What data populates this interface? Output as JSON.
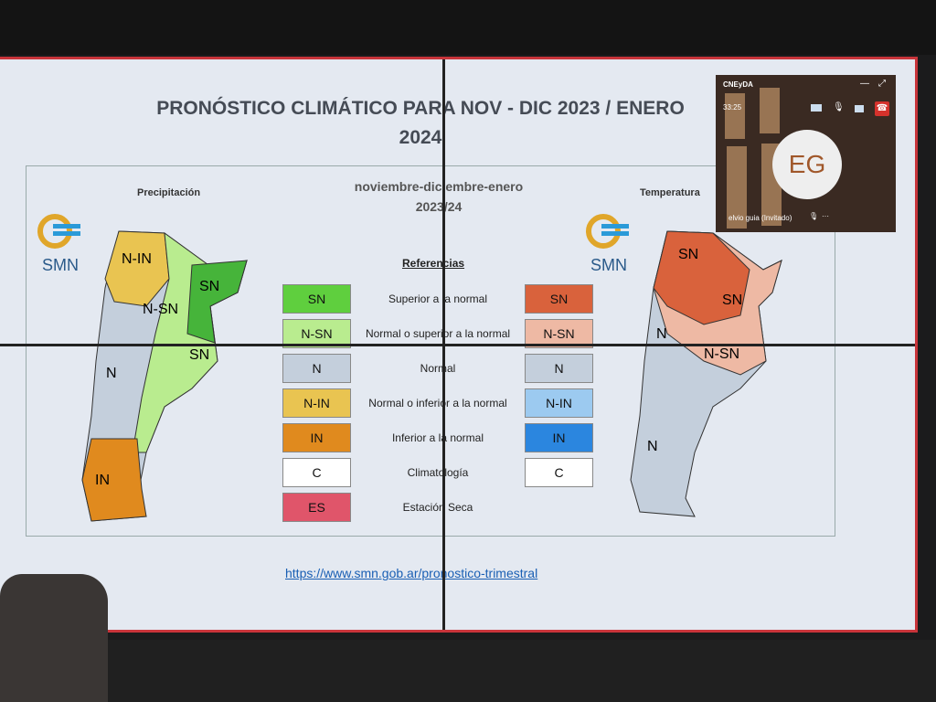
{
  "slide": {
    "title": "PRONÓSTICO CLIMÁTICO PARA NOV - DIC 2023 / ENERO 2024",
    "left_map_title": "Precipitación",
    "right_map_title": "Temperatura",
    "period": "noviembre-diciembre-enero",
    "period_year": "2023/24",
    "logo_text": "SMN",
    "references_title": "Referencias",
    "references": [
      {
        "code": "SN",
        "label": "Superior a la normal",
        "precip_color": "#5fcf3e",
        "temp_code": "SN",
        "temp_color": "#d9623c"
      },
      {
        "code": "N-SN",
        "label": "Normal o superior a la normal",
        "precip_color": "#b9ec8f",
        "temp_code": "N-SN",
        "temp_color": "#eeb9a4"
      },
      {
        "code": "N",
        "label": "Normal",
        "precip_color": "#c4cfdc",
        "temp_code": "N",
        "temp_color": "#c4cfdc"
      },
      {
        "code": "N-IN",
        "label": "Normal o inferior a la normal",
        "precip_color": "#e9c451",
        "temp_code": "N-IN",
        "temp_color": "#9ccaf0"
      },
      {
        "code": "IN",
        "label": "Inferior a la normal",
        "precip_color": "#e08a1e",
        "temp_code": "IN",
        "temp_color": "#2b86df"
      },
      {
        "code": "C",
        "label": "Climatología",
        "precip_color": "#ffffff",
        "temp_code": "C",
        "temp_color": "#ffffff"
      },
      {
        "code": "ES",
        "label": "Estación Seca",
        "precip_color": "#e0556a"
      }
    ],
    "precip_map_labels": [
      "N-IN",
      "N-SN",
      "SN",
      "SN",
      "N",
      "IN"
    ],
    "temp_map_labels": [
      "SN",
      "SN",
      "N",
      "N-SN",
      "N"
    ],
    "link": "https://www.smn.gob.ar/pronostico-trimestral"
  },
  "call": {
    "meeting": "CNEyDA",
    "timer": "33:25",
    "initials": "EG",
    "participant": "elvio guia (Invitado)"
  }
}
